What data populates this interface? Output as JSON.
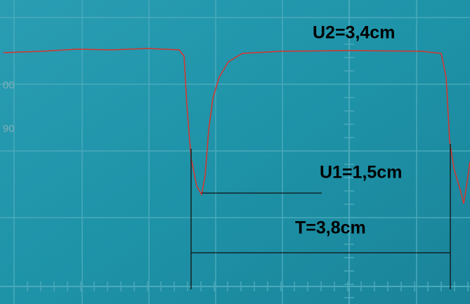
{
  "annotations": {
    "u2": "U2=3,4cm",
    "u1": "U1=1,5cm",
    "period": "T=3,8cm"
  },
  "scale_marks": [
    "00",
    "90"
  ]
}
